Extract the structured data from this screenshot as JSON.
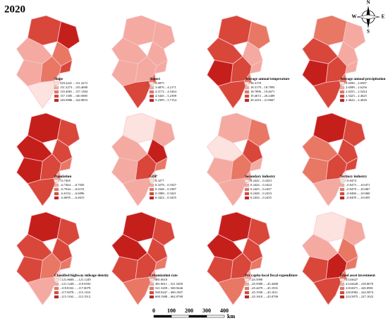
{
  "title": "2020",
  "compass": {
    "n": "N",
    "s": "S",
    "e": "E",
    "w": "W"
  },
  "scale_bar": {
    "labels": [
      "0",
      "100",
      "200",
      "300",
      "400"
    ],
    "unit": "km"
  },
  "class_colors": [
    "#fde3df",
    "#f4aaa0",
    "#e87764",
    "#d8473a",
    "#c51f1c"
  ],
  "panels": [
    {
      "title": "Slope",
      "legend": [
        "129.2441 – 131.3272",
        "131.3273 – 135.4080",
        "135.4081 – 137.1384",
        "137.1385 – 140.5885",
        "140.5886 – 144.9853"
      ],
      "regions": [
        3,
        4,
        2,
        1,
        3,
        1,
        2,
        0,
        0
      ]
    },
    {
      "title": "Aspect",
      "legend": [
        "3.6875",
        "3.6876 – 4.2171",
        "4.2172 – 4.5444",
        "4.5445 – 5.2398",
        "5.2399 – 5.7154"
      ],
      "regions": [
        1,
        1,
        1,
        1,
        1,
        1,
        1,
        2,
        3
      ]
    },
    {
      "title": "Average annual temperature",
      "legend": [
        "18.3178",
        "18.3179 – 18.7895",
        "18.7896 – 19.4671",
        "19.4672 – 20.2409",
        "20.2410 – 21.8667"
      ],
      "regions": [
        3,
        2,
        1,
        3,
        1,
        4,
        3,
        2,
        3
      ]
    },
    {
      "title": "Average annual precipitation",
      "legend": [
        "2.6590 – 2.6587",
        "2.6588 – 2.6256",
        "2.6255 – 2.5424",
        "2.5423 – 2.4625",
        "2.4624 – 2.4026"
      ],
      "regions": [
        2,
        1,
        1,
        3,
        1,
        4,
        3,
        2,
        3
      ]
    },
    {
      "title": "Population",
      "legend": [
        "–6.7465",
        "–6.7464 – –6.7045",
        "–6.7044 – –6.6153",
        "–6.6152 – –6.6096",
        "–6.6095 – –6.4615"
      ],
      "regions": [
        4,
        3,
        3,
        4,
        2,
        4,
        3,
        1,
        3
      ]
    },
    {
      "title": "GDP",
      "legend": [
        "0.3277",
        "0.3278 – 0.3347",
        "0.3348 – 0.3387",
        "0.3388 – 0.3421",
        "0.3422 – 0.3435"
      ],
      "regions": [
        0,
        1,
        4,
        1,
        2,
        1,
        3,
        0,
        1
      ]
    },
    {
      "title": "Secondary industry",
      "legend": [
        "0.2422 – 0.2423",
        "0.2424 – 0.2424",
        "0.2425 – 0.2427",
        "0.2428 – 0.2433",
        "0.2434 – 0.2435"
      ],
      "regions": [
        1,
        2,
        3,
        0,
        1,
        1,
        2,
        1,
        1
      ]
    },
    {
      "title": "Tertiary industry",
      "legend": [
        "–0.0474",
        "–0.0473 – –0.0471",
        "–0.0470 – –0.0467",
        "–0.0466 – –0.0460",
        "–0.0459 – –0.0455"
      ],
      "regions": [
        4,
        3,
        3,
        2,
        3,
        2,
        3,
        0,
        1
      ]
    },
    {
      "title": "Classified highway mileage density",
      "legend": [
        "–121.8608 – –121.1249",
        "–121.1248 – –119.8333",
        "–119.8332 – –117.0079",
        "–117.0078 – –115.1163",
        "–115.1162 – –112.1512"
      ],
      "regions": [
        4,
        3,
        3,
        3,
        2,
        3,
        2,
        0,
        1
      ]
    },
    {
      "title": "Urbanization rate",
      "legend": [
        "481.8610",
        "481.8611 – 521.5458",
        "521.5459 – 569.9446",
        "569.9447 – 600.1907",
        "600.1908 – 662.0760"
      ],
      "regions": [
        4,
        3,
        3,
        4,
        2,
        3,
        3,
        1,
        2
      ]
    },
    {
      "title": "Per capita local fiscal expenditure",
      "legend": [
        "–45.5990",
        "–45.5989 – –45.4480",
        "–45.4479 – –45.1931",
        "–45.1930 – –45.1611",
        "–45.1610 – –45.0706"
      ],
      "regions": [
        4,
        3,
        3,
        4,
        2,
        3,
        3,
        1,
        2
      ]
    },
    {
      "title": "Fixed asset investment",
      "legend": [
        "214.6627",
        "214.6628 – 218.0670",
        "218.0671 – 220.0981",
        "220.0982 – 224.5874",
        "224.5875 – 227.1022"
      ],
      "regions": [
        0,
        1,
        2,
        1,
        2,
        3,
        4,
        2,
        3
      ]
    }
  ]
}
